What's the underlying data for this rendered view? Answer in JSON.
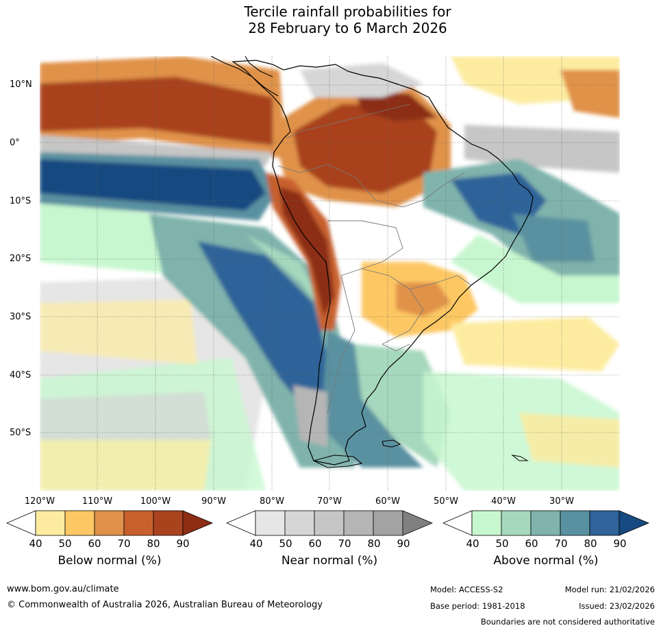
{
  "title": {
    "line1": "Tercile rainfall probabilities for",
    "line2": "28 February to 6 March 2026"
  },
  "map": {
    "region": "South America",
    "lat_labels": [
      "10°N",
      "0°",
      "10°S",
      "20°S",
      "30°S",
      "40°S",
      "50°S"
    ],
    "lon_labels": [
      "120°W",
      "110°W",
      "100°W",
      "90°W",
      "80°W",
      "70°W",
      "60°W",
      "50°W",
      "40°W",
      "30°W"
    ]
  },
  "legend": {
    "below": {
      "label": "Below normal (%)",
      "ticks": [
        "40",
        "50",
        "60",
        "70",
        "80",
        "90"
      ],
      "colors": [
        "#ffffff",
        "#fdeca0",
        "#fdc863",
        "#e0924a",
        "#c8602e",
        "#a9431e",
        "#8c2d14"
      ]
    },
    "near": {
      "label": "Near normal (%)",
      "ticks": [
        "40",
        "50",
        "60",
        "70",
        "80",
        "90"
      ],
      "colors": [
        "#ffffff",
        "#e6e6e6",
        "#d6d6d6",
        "#c6c6c6",
        "#b5b5b5",
        "#a3a3a3",
        "#808080"
      ]
    },
    "above": {
      "label": "Above normal (%)",
      "ticks": [
        "40",
        "50",
        "60",
        "70",
        "80",
        "90"
      ],
      "colors": [
        "#ffffff",
        "#c7f7cf",
        "#a6d8bd",
        "#7fb3ac",
        "#5a91a0",
        "#2f6399",
        "#174a80"
      ]
    }
  },
  "footer": {
    "website": "www.bom.gov.au/climate",
    "copyright": "© Commonwealth of Australia 2026, Australian Bureau of Meteorology",
    "model": "Model: ACCESS-S2",
    "model_run": "Model run: 21/02/2026",
    "base_period": "Base period: 1981-2018",
    "issued": "Issued: 23/02/2026",
    "boundaries": "Boundaries are not considered authoritative"
  }
}
